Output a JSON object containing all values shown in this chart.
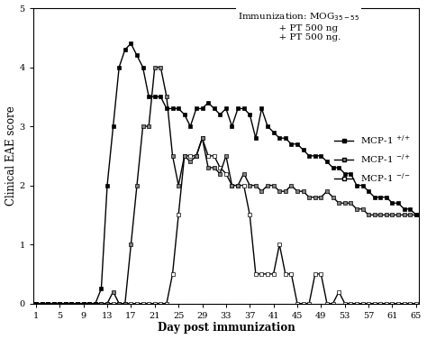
{
  "xlabel": "Day post immunization",
  "ylabel": "Clinical EAE score",
  "xlim": [
    1,
    65
  ],
  "ylim": [
    0,
    5
  ],
  "yticks": [
    0,
    1,
    2,
    3,
    4,
    5
  ],
  "xticks": [
    1,
    5,
    9,
    13,
    17,
    21,
    25,
    29,
    33,
    37,
    41,
    45,
    49,
    53,
    57,
    61,
    65
  ],
  "mcp_pp_days": [
    1,
    2,
    3,
    4,
    5,
    6,
    7,
    8,
    9,
    10,
    11,
    12,
    13,
    14,
    15,
    16,
    17,
    18,
    19,
    20,
    21,
    22,
    23,
    24,
    25,
    26,
    27,
    28,
    29,
    30,
    31,
    32,
    33,
    34,
    35,
    36,
    37,
    38,
    39,
    40,
    41,
    42,
    43,
    44,
    45,
    46,
    47,
    48,
    49,
    50,
    51,
    52,
    53,
    54,
    55,
    56,
    57,
    58,
    59,
    60,
    61,
    62,
    63,
    64,
    65
  ],
  "mcp_pp_scores": [
    0,
    0,
    0,
    0,
    0,
    0,
    0,
    0,
    0,
    0,
    0,
    0.25,
    2.0,
    3.0,
    4.0,
    4.3,
    4.4,
    4.2,
    4.0,
    3.5,
    3.5,
    3.5,
    3.3,
    3.3,
    3.3,
    3.2,
    3.0,
    3.3,
    3.3,
    3.4,
    3.3,
    3.2,
    3.3,
    3.0,
    3.3,
    3.3,
    3.2,
    2.8,
    3.3,
    3.0,
    2.9,
    2.8,
    2.8,
    2.7,
    2.7,
    2.6,
    2.5,
    2.5,
    2.5,
    2.4,
    2.3,
    2.3,
    2.2,
    2.2,
    2.0,
    2.0,
    1.9,
    1.8,
    1.8,
    1.8,
    1.7,
    1.7,
    1.6,
    1.6,
    1.5
  ],
  "mcp_mp_days": [
    1,
    2,
    3,
    4,
    5,
    6,
    7,
    8,
    9,
    10,
    11,
    12,
    13,
    14,
    15,
    16,
    17,
    18,
    19,
    20,
    21,
    22,
    23,
    24,
    25,
    26,
    27,
    28,
    29,
    30,
    31,
    32,
    33,
    34,
    35,
    36,
    37,
    38,
    39,
    40,
    41,
    42,
    43,
    44,
    45,
    46,
    47,
    48,
    49,
    50,
    51,
    52,
    53,
    54,
    55,
    56,
    57,
    58,
    59,
    60,
    61,
    62,
    63,
    64,
    65
  ],
  "mcp_mp_scores": [
    0,
    0,
    0,
    0,
    0,
    0,
    0,
    0,
    0,
    0,
    0,
    0,
    0,
    0.2,
    0,
    0,
    1.0,
    2.0,
    3.0,
    3.0,
    4.0,
    4.0,
    3.5,
    2.5,
    2.0,
    2.5,
    2.4,
    2.5,
    2.8,
    2.3,
    2.3,
    2.2,
    2.5,
    2.0,
    2.0,
    2.2,
    2.0,
    2.0,
    1.9,
    2.0,
    2.0,
    1.9,
    1.9,
    2.0,
    1.9,
    1.9,
    1.8,
    1.8,
    1.8,
    1.9,
    1.8,
    1.7,
    1.7,
    1.7,
    1.6,
    1.6,
    1.5,
    1.5,
    1.5,
    1.5,
    1.5,
    1.5,
    1.5,
    1.5,
    1.5
  ],
  "mcp_mm_days": [
    1,
    2,
    3,
    4,
    5,
    6,
    7,
    8,
    9,
    10,
    11,
    12,
    13,
    14,
    15,
    16,
    17,
    18,
    19,
    20,
    21,
    22,
    23,
    24,
    25,
    26,
    27,
    28,
    29,
    30,
    31,
    32,
    33,
    34,
    35,
    36,
    37,
    38,
    39,
    40,
    41,
    42,
    43,
    44,
    45,
    46,
    47,
    48,
    49,
    50,
    51,
    52,
    53,
    54,
    55,
    56,
    57,
    58,
    59,
    60,
    61,
    62,
    63,
    64,
    65
  ],
  "mcp_mm_scores": [
    0,
    0,
    0,
    0,
    0,
    0,
    0,
    0,
    0,
    0,
    0,
    0,
    0,
    0,
    0,
    0,
    0,
    0,
    0,
    0,
    0,
    0,
    0,
    0.5,
    1.5,
    2.5,
    2.5,
    2.5,
    2.8,
    2.5,
    2.5,
    2.3,
    2.2,
    2.0,
    2.0,
    2.0,
    1.5,
    0.5,
    0.5,
    0.5,
    0.5,
    1.0,
    0.5,
    0.5,
    0.0,
    0.0,
    0.0,
    0.5,
    0.5,
    0.0,
    0.0,
    0.2,
    0.0,
    0.0,
    0.0,
    0.0,
    0.0,
    0.0,
    0.0,
    0.0,
    0.0,
    0.0,
    0.0,
    0.0,
    0.0
  ],
  "annotation_text": "Immunization: MOG$_{35-55}$\n              + PT 500 ng\n              + PT 500 ng.",
  "legend_label_pp": "MCP-1 $^{+/+}$",
  "legend_label_mp": "MCP-1 $^{-/+}$",
  "legend_label_mm": "MCP-1 $^{-/-}$",
  "background_color": "#ffffff",
  "linewidth": 1.0,
  "markersize": 3.5
}
